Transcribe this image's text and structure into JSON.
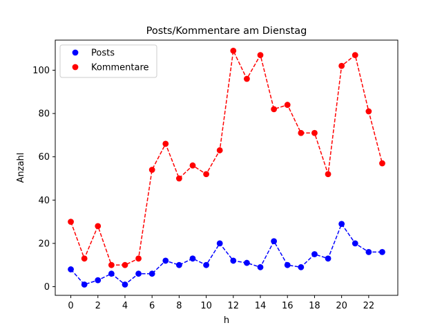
{
  "chart_data": {
    "type": "line",
    "title": "Posts/Kommentare am Dienstag",
    "xlabel": "h",
    "ylabel": "Anzahl",
    "x": [
      0,
      1,
      2,
      3,
      4,
      5,
      6,
      7,
      8,
      9,
      10,
      11,
      12,
      13,
      14,
      15,
      16,
      17,
      18,
      19,
      20,
      21,
      22,
      23
    ],
    "xlim": [
      -1.15,
      24.15
    ],
    "ylim": [
      -4.0,
      113.9
    ],
    "xticks": [
      0,
      2,
      4,
      6,
      8,
      10,
      12,
      14,
      16,
      18,
      20,
      22
    ],
    "yticks": [
      0,
      20,
      40,
      60,
      80,
      100
    ],
    "grid": false,
    "legend_position": "top-left",
    "series": [
      {
        "name": "Posts",
        "color": "#0000ff",
        "line_style": "dashed",
        "marker": "circle",
        "values": [
          8,
          1,
          3,
          6,
          1,
          6,
          6,
          12,
          10,
          13,
          10,
          20,
          12,
          11,
          9,
          21,
          10,
          9,
          15,
          13,
          29,
          20,
          16,
          16
        ]
      },
      {
        "name": "Kommentare",
        "color": "#ff0000",
        "line_style": "dashed",
        "marker": "circle",
        "values": [
          30,
          13,
          28,
          10,
          10,
          13,
          54,
          66,
          50,
          56,
          52,
          63,
          109,
          96,
          107,
          82,
          84,
          71,
          71,
          52,
          102,
          107,
          81,
          57
        ]
      }
    ]
  }
}
